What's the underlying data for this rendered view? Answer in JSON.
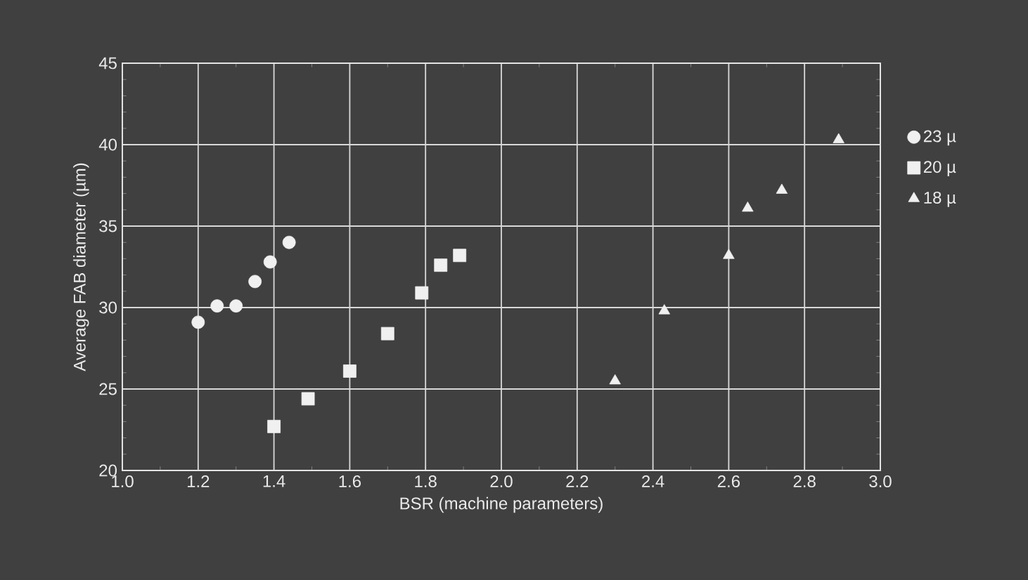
{
  "chart_data": {
    "type": "scatter",
    "xlabel": "BSR (machine parameters)",
    "ylabel": "Average FAB diameter (µm)",
    "xlim": [
      1.0,
      3.0
    ],
    "ylim": [
      20,
      45
    ],
    "xticks": [
      {
        "value": 1.0,
        "label": "1.0"
      },
      1.2,
      1.4,
      1.6,
      1.8,
      {
        "value": 2.0,
        "label": "2.0"
      },
      2.2,
      2.4,
      2.6,
      2.8,
      {
        "value": 3.0,
        "label": "3.0"
      }
    ],
    "yticks": [
      20,
      25,
      30,
      35,
      40,
      45
    ],
    "grid": true,
    "legend": "right",
    "series": [
      {
        "name": "23 µ",
        "color": "#f0f0f0",
        "marker": "circle",
        "x": [
          1.2,
          1.25,
          1.3,
          1.35,
          1.39,
          1.44
        ],
        "values": [
          29.1,
          30.1,
          30.1,
          31.6,
          32.8,
          34.0
        ]
      },
      {
        "name": "20 µ",
        "color": "#f0f0f0",
        "marker": "square",
        "x": [
          1.4,
          1.49,
          1.6,
          1.7,
          1.79,
          1.84,
          1.89
        ],
        "values": [
          22.7,
          24.4,
          26.1,
          28.4,
          30.9,
          32.6,
          33.2
        ]
      },
      {
        "name": "18 µ",
        "color": "#f0f0f0",
        "marker": "triangle",
        "x": [
          2.3,
          2.43,
          2.6,
          2.65,
          2.74,
          2.89
        ],
        "values": [
          25.5,
          29.8,
          33.2,
          36.1,
          37.2,
          40.3
        ]
      }
    ]
  }
}
